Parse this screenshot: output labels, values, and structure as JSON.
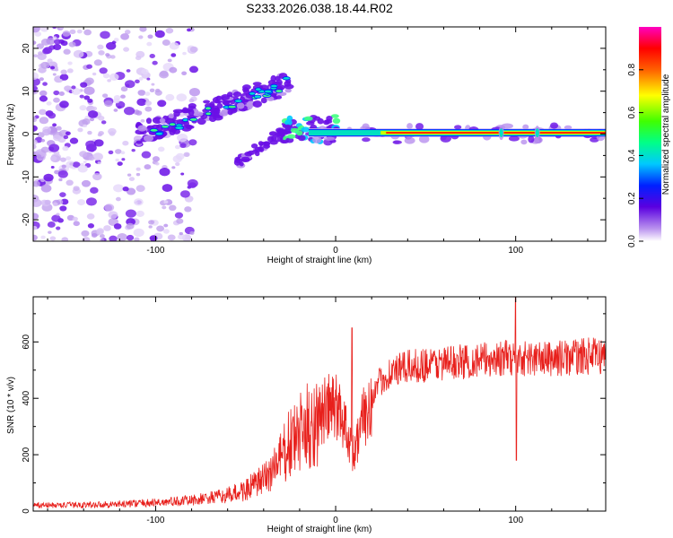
{
  "title": "S233.2026.038.18.44.R02",
  "chart_data": [
    {
      "type": "heatmap",
      "name": "spectrogram",
      "xlabel": "Height of straight line (km)",
      "ylabel": "Frequency (Hz)",
      "xlim": [
        -168,
        150
      ],
      "ylim": [
        -25,
        25
      ],
      "xticks": [
        -100,
        0,
        100
      ],
      "xtick_labels": [
        "-100",
        "0",
        "100"
      ],
      "yticks": [
        -20,
        -10,
        0,
        10,
        20
      ],
      "ytick_labels": [
        "-20",
        "-10",
        "0",
        "10",
        "20"
      ],
      "features": [
        {
          "label": "carrier line",
          "x_from": -15,
          "x_to": 150,
          "frequency_hz": 0.3
        },
        {
          "label": "rising branch",
          "x_from": -110,
          "x_to": -25,
          "frequency_from_hz": 0,
          "frequency_to_hz": 12
        },
        {
          "label": "lower branch",
          "x_from": -55,
          "x_to": -25,
          "frequency_from_hz": -7,
          "frequency_to_hz": 2
        },
        {
          "label": "noise region",
          "x_from": -168,
          "x_to": -95
        }
      ],
      "colorbar": {
        "label": "Normalized spectral amplitude",
        "range": [
          0,
          1
        ],
        "ticks": [
          0.0,
          0.2,
          0.4,
          0.6,
          0.8
        ],
        "tick_labels": [
          "0.0",
          "0.2",
          "0.4",
          "0.6",
          "0.8"
        ]
      }
    },
    {
      "type": "line",
      "name": "snr",
      "xlabel": "Height of straight line (km)",
      "ylabel": "SNR (10 * v/v)",
      "xlim": [
        -168,
        150
      ],
      "ylim": [
        0,
        760
      ],
      "xticks": [
        -100,
        0,
        100
      ],
      "xtick_labels": [
        "-100",
        "0",
        "100"
      ],
      "yticks": [
        0,
        200,
        400,
        600
      ],
      "ytick_labels": [
        "0",
        "200",
        "400",
        "600"
      ],
      "color": "#e8201c",
      "trend": {
        "x": [
          -168,
          -140,
          -120,
          -100,
          -80,
          -60,
          -50,
          -40,
          -35,
          -30,
          -25,
          -20,
          -15,
          -10,
          -5,
          0,
          5,
          8,
          10,
          12,
          15,
          20,
          25,
          30,
          40,
          50,
          60,
          70,
          80,
          90,
          100,
          110,
          120,
          130,
          140,
          150
        ],
        "y": [
          20,
          22,
          25,
          30,
          38,
          55,
          75,
          110,
          150,
          190,
          240,
          270,
          300,
          330,
          360,
          370,
          320,
          250,
          200,
          250,
          320,
          400,
          460,
          490,
          510,
          520,
          525,
          530,
          535,
          540,
          545,
          540,
          540,
          545,
          550,
          550
        ]
      },
      "spikes": [
        {
          "x": 9,
          "y_max": 650
        },
        {
          "x": 100,
          "y_max": 760,
          "y_min": 180
        }
      ]
    }
  ]
}
